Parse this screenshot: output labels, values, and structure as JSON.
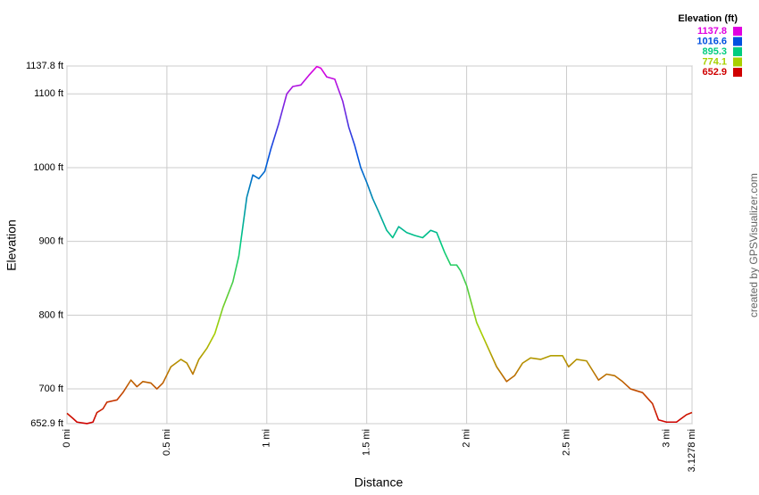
{
  "chart_data": {
    "type": "line",
    "x_label": "Distance",
    "y_label": "Elevation",
    "credit": "created by GPSVisualizer.com",
    "x": [
      0,
      0.03,
      0.05,
      0.1,
      0.13,
      0.15,
      0.18,
      0.2,
      0.25,
      0.28,
      0.32,
      0.35,
      0.38,
      0.42,
      0.45,
      0.48,
      0.52,
      0.57,
      0.6,
      0.63,
      0.66,
      0.7,
      0.74,
      0.78,
      0.83,
      0.86,
      0.9,
      0.93,
      0.96,
      0.99,
      1.02,
      1.06,
      1.1,
      1.13,
      1.17,
      1.21,
      1.25,
      1.27,
      1.3,
      1.34,
      1.38,
      1.41,
      1.44,
      1.47,
      1.5,
      1.53,
      1.56,
      1.6,
      1.63,
      1.66,
      1.7,
      1.74,
      1.78,
      1.82,
      1.85,
      1.89,
      1.92,
      1.95,
      1.97,
      2.0,
      2.05,
      2.1,
      2.15,
      2.2,
      2.24,
      2.28,
      2.32,
      2.37,
      2.42,
      2.48,
      2.51,
      2.55,
      2.6,
      2.66,
      2.7,
      2.74,
      2.78,
      2.82,
      2.88,
      2.93,
      2.96,
      3.0,
      3.05,
      3.1,
      3.1278
    ],
    "series": [
      {
        "name": "Elevation (ft)",
        "values": [
          667,
          660,
          655,
          653,
          655,
          668,
          673,
          682,
          685,
          695,
          712,
          703,
          710,
          708,
          700,
          708,
          730,
          740,
          735,
          720,
          740,
          755,
          775,
          810,
          845,
          880,
          960,
          990,
          985,
          995,
          1025,
          1060,
          1100,
          1110,
          1112,
          1125,
          1137,
          1135,
          1123,
          1120,
          1090,
          1055,
          1030,
          1000,
          980,
          958,
          940,
          915,
          905,
          920,
          912,
          908,
          905,
          915,
          912,
          885,
          868,
          868,
          860,
          840,
          790,
          760,
          730,
          710,
          718,
          735,
          742,
          740,
          745,
          745,
          730,
          740,
          738,
          712,
          720,
          718,
          710,
          700,
          695,
          680,
          658,
          655,
          655,
          665,
          668
        ]
      }
    ],
    "color_scale": [
      {
        "value": 1137.8,
        "color": "#e000e0"
      },
      {
        "value": 1016.6,
        "color": "#0050e0"
      },
      {
        "value": 895.3,
        "color": "#00cc80"
      },
      {
        "value": 774.1,
        "color": "#a8d000"
      },
      {
        "value": 652.9,
        "color": "#d00000"
      }
    ],
    "xlim": [
      0,
      3.1278
    ],
    "xticks": [
      {
        "value": 0,
        "label": "0 mi"
      },
      {
        "value": 0.5,
        "label": "0.5 mi"
      },
      {
        "value": 1,
        "label": "1 mi"
      },
      {
        "value": 1.5,
        "label": "1.5 mi"
      },
      {
        "value": 2,
        "label": "2 mi"
      },
      {
        "value": 2.5,
        "label": "2.5 mi"
      },
      {
        "value": 3,
        "label": "3 mi"
      },
      {
        "value": 3.1278,
        "label": "3.1278 mi"
      }
    ],
    "ylim": [
      652.9,
      1137.8
    ],
    "yticks": [
      {
        "value": 652.9,
        "label": "652.9 ft"
      },
      {
        "value": 700,
        "label": "700 ft"
      },
      {
        "value": 800,
        "label": "800 ft"
      },
      {
        "value": 900,
        "label": "900 ft"
      },
      {
        "value": 1000,
        "label": "1000 ft"
      },
      {
        "value": 1100,
        "label": "1100 ft"
      },
      {
        "value": 1137.8,
        "label": "1137.8 ft"
      }
    ],
    "grid": true
  }
}
